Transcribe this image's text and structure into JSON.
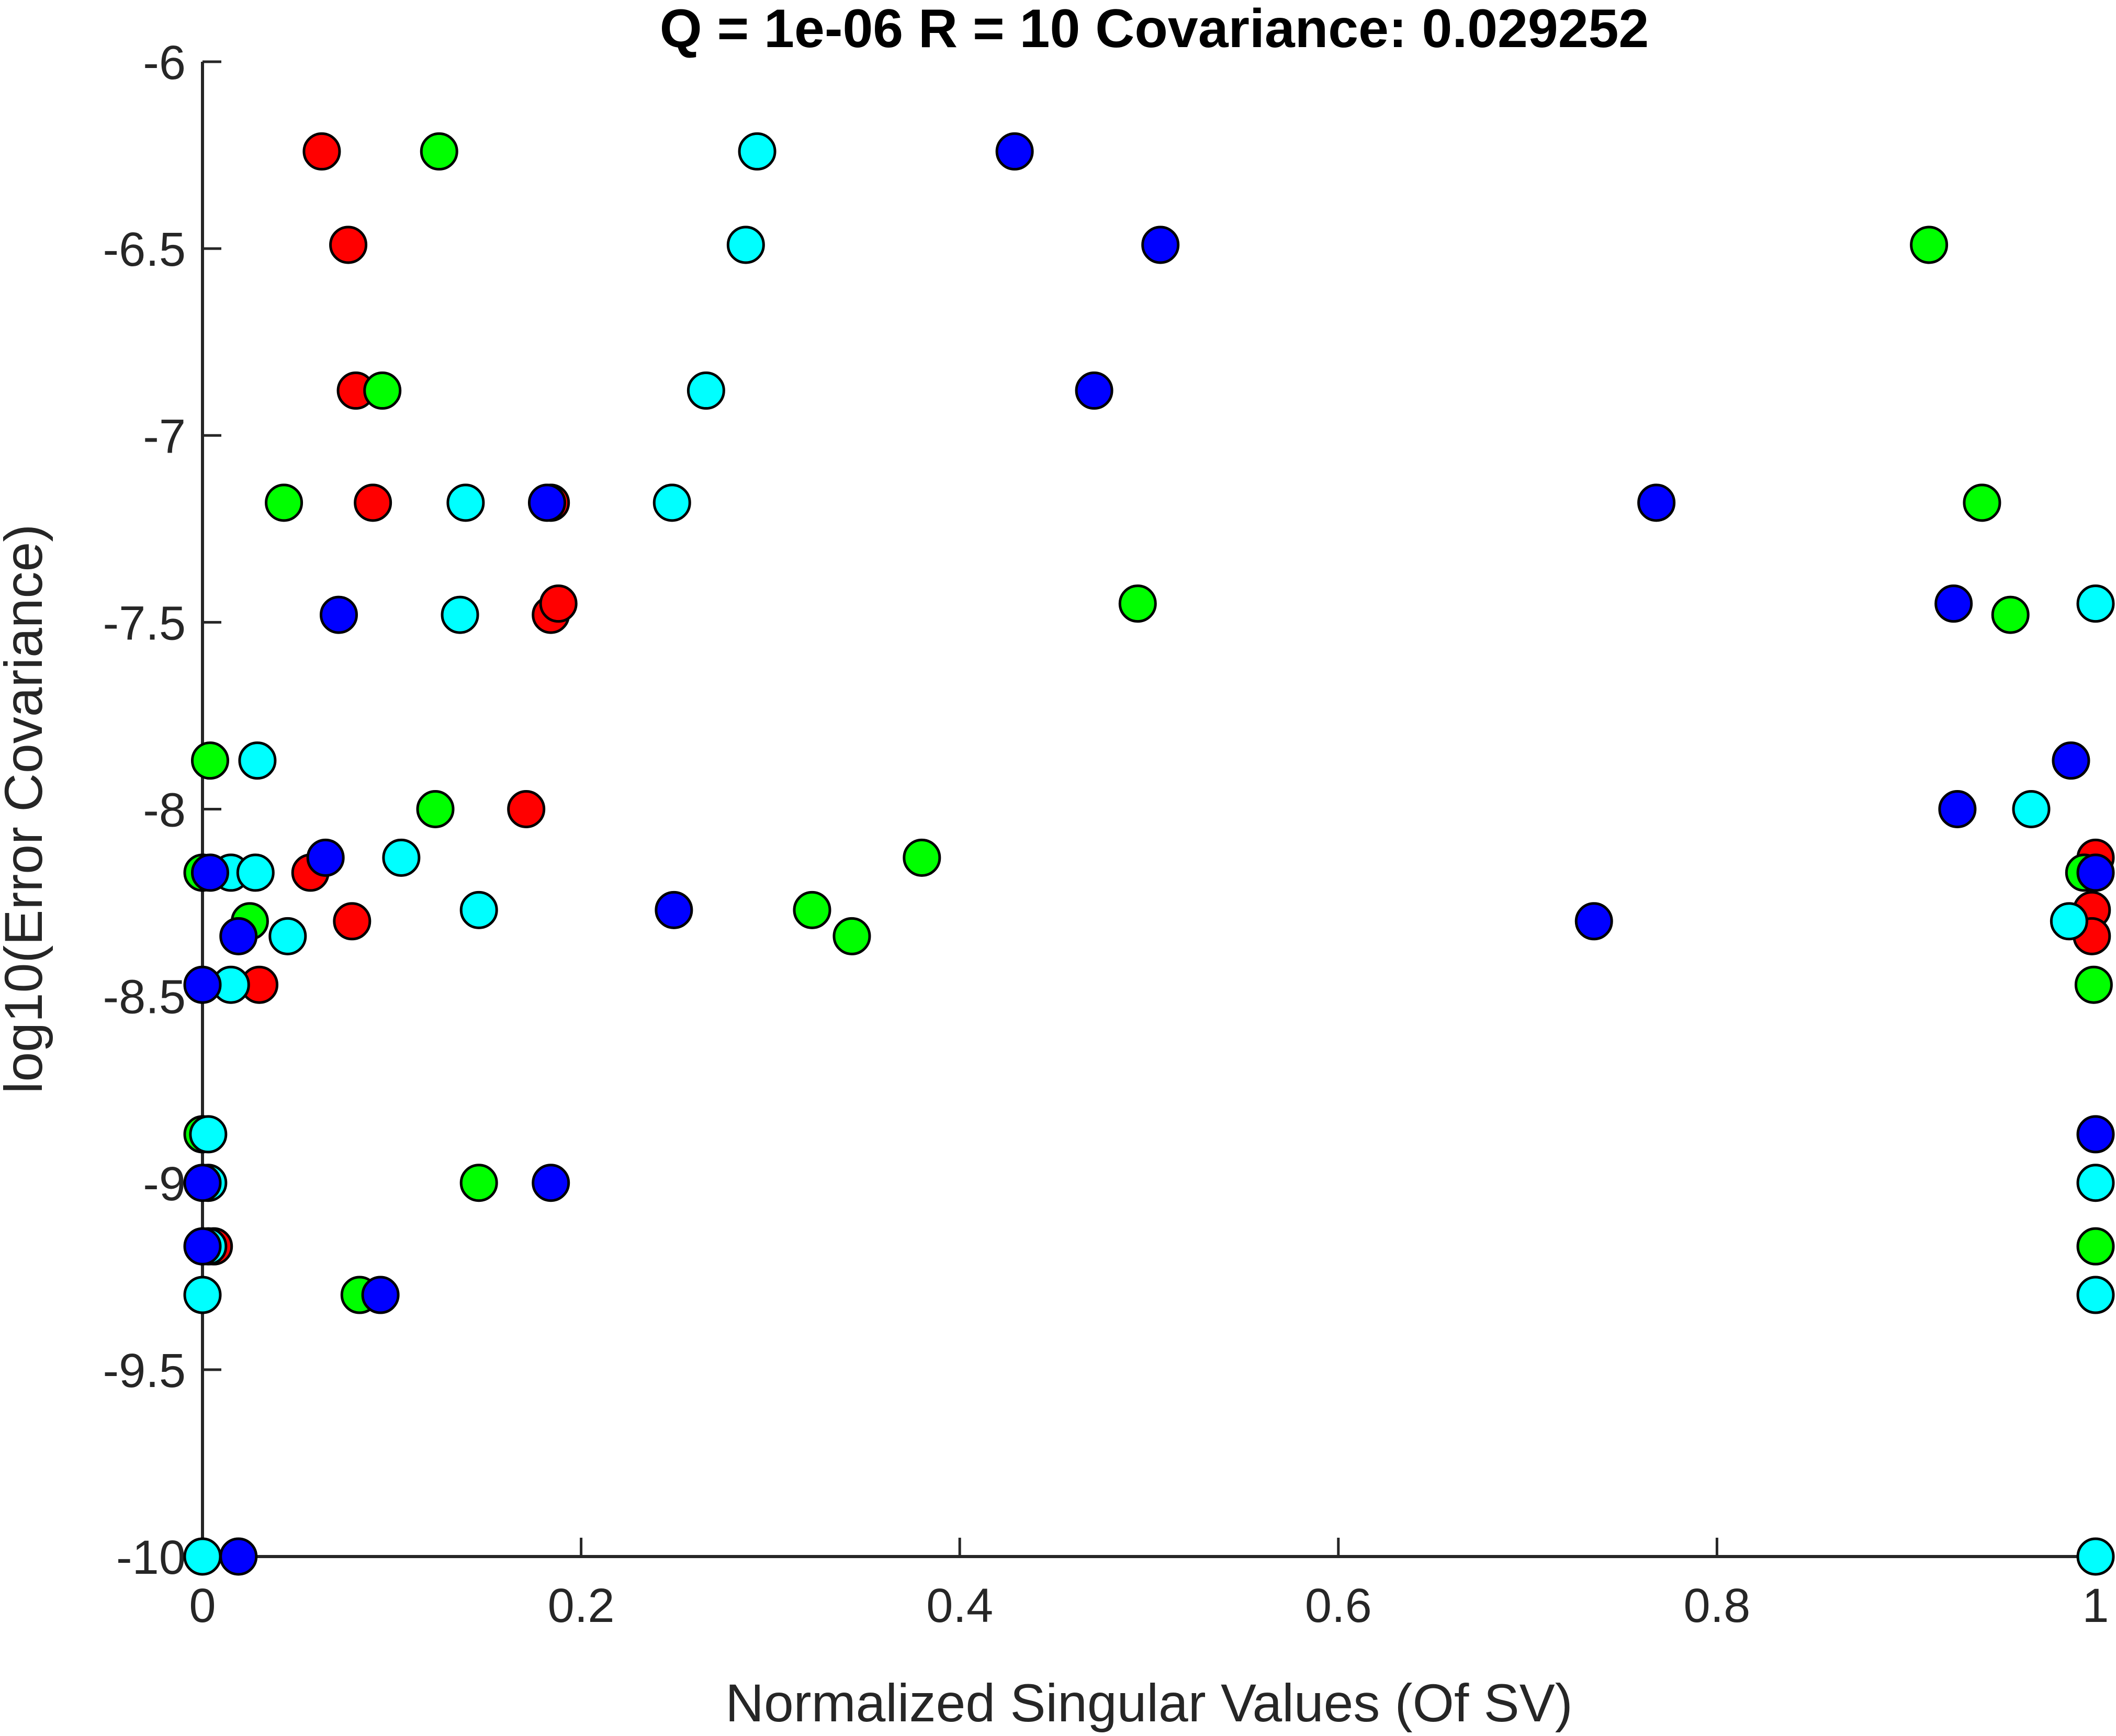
{
  "chart_data": {
    "type": "scatter",
    "title": "Q = 1e-06  R = 10  Covariance: 0.029252",
    "xlabel": "Normalized Singular Values (Of SV)",
    "ylabel": "log10(Error Covariance)",
    "xlim": [
      0,
      1
    ],
    "ylim": [
      -10,
      -6
    ],
    "xticks": [
      "0",
      "0.2",
      "0.4",
      "0.6",
      "0.8",
      "1"
    ],
    "yticks": [
      "-10",
      "-9.5",
      "-9",
      "-8.5",
      "-8",
      "-7.5",
      "-7",
      "-6.5",
      "-6"
    ],
    "xtick_values": [
      0,
      0.2,
      0.4,
      0.6,
      0.8,
      1
    ],
    "ytick_values": [
      -10,
      -9.5,
      -9,
      -8.5,
      -8,
      -7.5,
      -7,
      -6.5,
      -6
    ],
    "grid": false,
    "legend": "none",
    "marker": "filled circle with black edge",
    "series": [
      {
        "color": "#ff0000",
        "points": [
          [
            0.063,
            -6.24
          ],
          [
            0.077,
            -6.49
          ],
          [
            0.081,
            -6.88
          ],
          [
            0.09,
            -7.18
          ],
          [
            0.184,
            -7.18
          ],
          [
            0.184,
            -7.48
          ],
          [
            0.188,
            -7.45
          ],
          [
            0.171,
            -8.0
          ],
          [
            0.057,
            -8.17
          ],
          [
            0.079,
            -8.3
          ],
          [
            0.03,
            -8.47
          ],
          [
            0.006,
            -9.17
          ],
          [
            1.0,
            -8.13
          ],
          [
            0.998,
            -8.27
          ],
          [
            0.998,
            -8.34
          ]
        ]
      },
      {
        "color": "#00ff00",
        "points": [
          [
            0.125,
            -6.24
          ],
          [
            0.095,
            -6.88
          ],
          [
            0.043,
            -7.18
          ],
          [
            0.004,
            -7.87
          ],
          [
            0.123,
            -8.0
          ],
          [
            0.0,
            -8.17
          ],
          [
            0.025,
            -8.3
          ],
          [
            0.38,
            -8.13
          ],
          [
            0.322,
            -8.27
          ],
          [
            0.343,
            -8.34
          ],
          [
            0.0,
            -8.87
          ],
          [
            0.146,
            -9.0
          ],
          [
            0.083,
            -9.3
          ],
          [
            0.494,
            -7.45
          ],
          [
            0.912,
            -6.49
          ],
          [
            0.94,
            -7.18
          ],
          [
            0.955,
            -7.48
          ],
          [
            0.994,
            -8.17
          ],
          [
            0.999,
            -8.47
          ],
          [
            1.0,
            -9.17
          ]
        ]
      },
      {
        "color": "#00ffff",
        "points": [
          [
            0.293,
            -6.24
          ],
          [
            0.287,
            -6.49
          ],
          [
            0.266,
            -6.88
          ],
          [
            0.248,
            -7.18
          ],
          [
            0.139,
            -7.18
          ],
          [
            0.136,
            -7.48
          ],
          [
            0.029,
            -7.87
          ],
          [
            0.105,
            -8.13
          ],
          [
            0.015,
            -8.17
          ],
          [
            0.028,
            -8.17
          ],
          [
            0.146,
            -8.27
          ],
          [
            0.045,
            -8.34
          ],
          [
            0.015,
            -8.47
          ],
          [
            0.003,
            -8.87
          ],
          [
            0.003,
            -9.0
          ],
          [
            0.003,
            -9.17
          ],
          [
            0.0,
            -9.3
          ],
          [
            0.0,
            -10.0
          ],
          [
            1.0,
            -7.45
          ],
          [
            0.966,
            -8.0
          ],
          [
            0.986,
            -8.3
          ],
          [
            1.0,
            -9.0
          ],
          [
            1.0,
            -9.3
          ],
          [
            1.0,
            -10.0
          ]
        ]
      },
      {
        "color": "#0000ff",
        "points": [
          [
            0.429,
            -6.24
          ],
          [
            0.506,
            -6.49
          ],
          [
            0.471,
            -6.88
          ],
          [
            0.182,
            -7.18
          ],
          [
            0.072,
            -7.48
          ],
          [
            0.065,
            -8.13
          ],
          [
            0.004,
            -8.17
          ],
          [
            0.019,
            -8.34
          ],
          [
            0.0,
            -8.47
          ],
          [
            0.0,
            -9.0
          ],
          [
            0.0,
            -9.17
          ],
          [
            0.184,
            -9.0
          ],
          [
            0.094,
            -9.3
          ],
          [
            0.019,
            -10.0
          ],
          [
            0.249,
            -8.27
          ],
          [
            0.735,
            -8.3
          ],
          [
            0.768,
            -7.18
          ],
          [
            0.925,
            -7.45
          ],
          [
            0.927,
            -8.0
          ],
          [
            0.987,
            -7.87
          ],
          [
            1.0,
            -8.17
          ],
          [
            1.0,
            -8.87
          ]
        ]
      }
    ]
  }
}
